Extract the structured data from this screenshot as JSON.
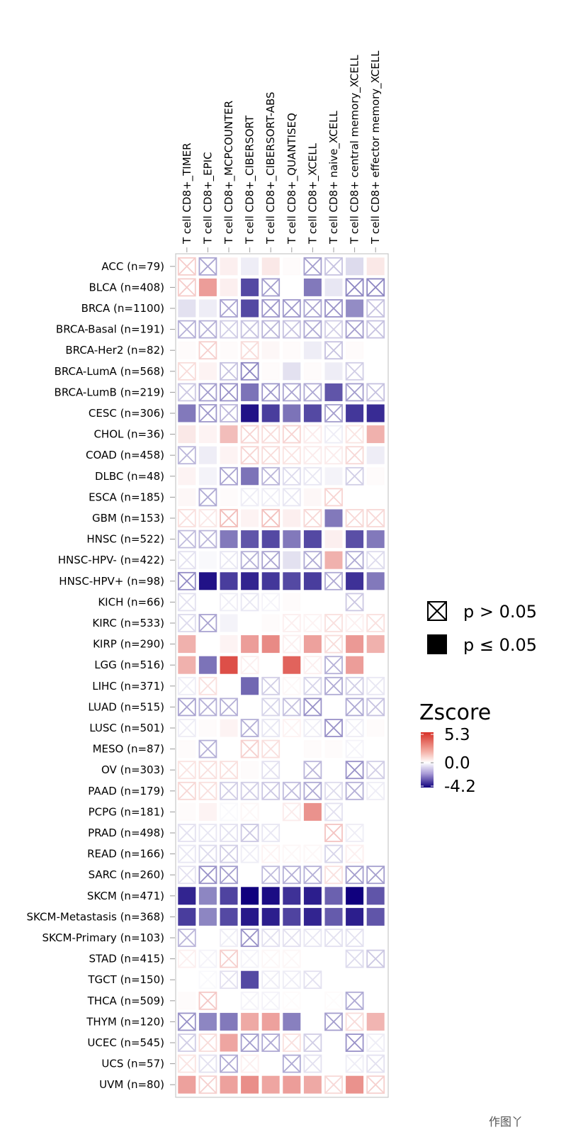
{
  "chart_data": {
    "type": "heatmap",
    "columns": [
      "T cell CD8+_TIMER",
      "T cell CD8+_EPIC",
      "T cell CD8+_MCPCOUNTER",
      "T cell CD8+_CIBERSORT",
      "T cell CD8+_CIBERSORT-ABS",
      "T cell CD8+_QUANTISEQ",
      "T cell CD8+_XCELL",
      "T cell CD8+ naive_XCELL",
      "T cell CD8+ central memory_XCELL",
      "T cell CD8+ effector memory_XCELL"
    ],
    "rows": [
      "ACC (n=79)",
      "BLCA (n=408)",
      "BRCA (n=1100)",
      "BRCA-Basal (n=191)",
      "BRCA-Her2 (n=82)",
      "BRCA-LumA (n=568)",
      "BRCA-LumB (n=219)",
      "CESC (n=306)",
      "CHOL (n=36)",
      "COAD (n=458)",
      "DLBC (n=48)",
      "ESCA (n=185)",
      "GBM (n=153)",
      "HNSC (n=522)",
      "HNSC-HPV- (n=422)",
      "HNSC-HPV+ (n=98)",
      "KICH (n=66)",
      "KIRC (n=533)",
      "KIRP (n=290)",
      "LGG (n=516)",
      "LIHC (n=371)",
      "LUAD (n=515)",
      "LUSC (n=501)",
      "MESO (n=87)",
      "OV (n=303)",
      "PAAD (n=179)",
      "PCPG (n=181)",
      "PRAD (n=498)",
      "READ (n=166)",
      "SARC (n=260)",
      "SKCM (n=471)",
      "SKCM-Metastasis (n=368)",
      "SKCM-Primary (n=103)",
      "STAD (n=415)",
      "TGCT (n=150)",
      "THCA (n=509)",
      "THYM (n=120)",
      "UCEC (n=545)",
      "UCS (n=57)",
      "UVM (n=80)"
    ],
    "zscore": [
      [
        1.3,
        -1.5,
        0.4,
        -0.3,
        0.6,
        0.1,
        -1.6,
        -1.0,
        -0.6,
        0.6
      ],
      [
        1.3,
        2.5,
        0.4,
        -3.0,
        -1.6,
        0.0,
        -2.2,
        -0.4,
        -2.0,
        -2.0
      ],
      [
        -0.5,
        -0.3,
        -1.5,
        -3.0,
        -1.7,
        -1.7,
        -1.5,
        -1.8,
        -1.9,
        -1.0
      ],
      [
        -1.3,
        -1.3,
        -0.8,
        -1.0,
        -1.2,
        -1.0,
        -1.4,
        -0.8,
        -1.6,
        -1.0
      ],
      [
        0.1,
        1.2,
        0.1,
        0.9,
        0.2,
        0.1,
        -0.3,
        -1.0,
        0.1,
        0.0
      ],
      [
        0.9,
        0.3,
        -1.0,
        -2.0,
        0.1,
        -0.5,
        0.1,
        -0.3,
        -0.8,
        0.0
      ],
      [
        -0.9,
        -1.6,
        -1.8,
        -2.3,
        -1.7,
        -1.5,
        -1.4,
        -2.8,
        -1.6,
        -1.0
      ],
      [
        -2.2,
        -1.7,
        -1.2,
        -3.9,
        -3.2,
        -2.3,
        -3.0,
        -1.6,
        -3.3,
        -3.5
      ],
      [
        0.6,
        0.3,
        1.7,
        1.1,
        0.9,
        1.1,
        0.5,
        -0.3,
        0.7,
        2.0
      ],
      [
        -1.2,
        -0.3,
        0.3,
        1.1,
        0.9,
        0.7,
        0.5,
        0.5,
        1.0,
        -0.3
      ],
      [
        0.3,
        -0.2,
        -1.5,
        -2.3,
        -1.2,
        -0.6,
        -0.4,
        -0.2,
        -0.8,
        0.1
      ],
      [
        0.2,
        -1.4,
        0.1,
        -0.3,
        -0.3,
        -0.4,
        0.2,
        1.1,
        0.0,
        0.0
      ],
      [
        0.8,
        0.6,
        1.7,
        0.3,
        1.6,
        0.4,
        1.0,
        -2.2,
        1.0,
        1.0
      ],
      [
        -1.1,
        -1.2,
        -2.2,
        -2.8,
        -3.0,
        -2.2,
        -3.0,
        0.4,
        -2.9,
        -2.2
      ],
      [
        -0.5,
        -0.1,
        -0.4,
        -1.3,
        -1.5,
        -0.5,
        -1.4,
        2.0,
        -1.4,
        -0.6
      ],
      [
        -1.9,
        -3.9,
        -3.2,
        -3.6,
        -3.3,
        -3.0,
        -3.2,
        -1.4,
        -3.4,
        -2.2
      ],
      [
        -0.5,
        0.0,
        -0.3,
        -0.4,
        -0.2,
        0.1,
        0.0,
        0.0,
        -0.9,
        0.0
      ],
      [
        -0.6,
        -1.5,
        -0.2,
        0.0,
        0.1,
        0.4,
        0.3,
        0.8,
        0.4,
        0.8
      ],
      [
        2.0,
        0.0,
        0.3,
        2.5,
        3.0,
        0.4,
        2.4,
        0.9,
        2.6,
        2.0
      ],
      [
        2.0,
        -2.3,
        4.5,
        0.4,
        0.0,
        4.0,
        0.4,
        -1.3,
        2.5,
        0.0
      ],
      [
        -0.3,
        0.8,
        0.0,
        -2.5,
        -0.8,
        0.2,
        -0.7,
        -1.4,
        -0.8,
        -0.4
      ],
      [
        -1.5,
        -1.3,
        -1.3,
        0.0,
        -0.7,
        -1.0,
        -1.8,
        0.0,
        -1.4,
        -1.0
      ],
      [
        -0.3,
        0.1,
        0.3,
        -1.3,
        -0.4,
        0.3,
        -0.3,
        -1.8,
        -0.3,
        0.1
      ],
      [
        0.1,
        -1.3,
        0.0,
        1.2,
        0.8,
        0.0,
        0.1,
        0.1,
        -0.2,
        0.0
      ],
      [
        0.7,
        0.8,
        0.8,
        0.1,
        -0.5,
        0.0,
        -1.2,
        0.0,
        -1.8,
        -0.8
      ],
      [
        1.0,
        0.8,
        -0.8,
        -0.8,
        -0.9,
        -1.1,
        -1.4,
        -0.6,
        -1.3,
        -0.3
      ],
      [
        0.1,
        0.3,
        -0.1,
        0.2,
        0.0,
        0.5,
        2.8,
        -0.5,
        0.0,
        0.0
      ],
      [
        -0.5,
        -0.4,
        -0.5,
        -0.9,
        -0.4,
        0.0,
        0.0,
        1.5,
        -0.3,
        0.0
      ],
      [
        -0.4,
        -0.6,
        -0.8,
        -0.3,
        0.3,
        0.2,
        0.2,
        -0.7,
        0.4,
        0.0
      ],
      [
        -0.5,
        -1.8,
        -1.6,
        0.0,
        -1.1,
        -1.3,
        -1.3,
        0.8,
        -1.6,
        -1.6
      ],
      [
        -3.6,
        -2.0,
        -3.1,
        -4.2,
        -4.0,
        -3.4,
        -3.7,
        -2.6,
        -4.2,
        -2.8
      ],
      [
        -3.2,
        -2.0,
        -3.0,
        -3.8,
        -3.7,
        -3.1,
        -3.6,
        -2.7,
        -3.7,
        -2.8
      ],
      [
        -1.2,
        0.0,
        -0.3,
        -1.8,
        -0.5,
        -0.5,
        -0.4,
        -0.5,
        -0.5,
        0.0
      ],
      [
        0.4,
        -0.2,
        1.2,
        -0.2,
        0.2,
        0.2,
        0.0,
        0.0,
        -0.6,
        -0.9
      ],
      [
        0.0,
        -0.1,
        -0.5,
        -3.0,
        -0.3,
        -0.3,
        -0.5,
        0.0,
        0.0,
        0.0
      ],
      [
        0.1,
        1.4,
        0.0,
        -0.2,
        -0.2,
        0.1,
        0.0,
        0.1,
        -1.4,
        0.0
      ],
      [
        -1.8,
        -2.0,
        -2.2,
        2.2,
        2.4,
        -2.1,
        0.0,
        -1.6,
        0.9,
        1.9
      ],
      [
        -0.8,
        0.9,
        2.3,
        -1.6,
        -1.4,
        0.8,
        -0.8,
        0.0,
        -1.8,
        -0.3
      ],
      [
        0.7,
        -0.5,
        -1.4,
        0.4,
        0.0,
        -1.4,
        -0.5,
        0.0,
        -0.3,
        -0.5
      ],
      [
        2.4,
        1.2,
        2.4,
        2.9,
        2.3,
        2.5,
        2.2,
        1.0,
        2.8,
        1.2
      ]
    ],
    "not_significant": [
      [
        1,
        1,
        0,
        0,
        0,
        0,
        1,
        1,
        0,
        0
      ],
      [
        1,
        0,
        0,
        0,
        1,
        0,
        0,
        0,
        1,
        1
      ],
      [
        0,
        0,
        1,
        0,
        1,
        1,
        1,
        1,
        0,
        1
      ],
      [
        1,
        1,
        1,
        1,
        1,
        1,
        1,
        1,
        1,
        1
      ],
      [
        0,
        1,
        0,
        1,
        0,
        0,
        0,
        1,
        0,
        0
      ],
      [
        1,
        0,
        1,
        1,
        0,
        0,
        0,
        0,
        1,
        0
      ],
      [
        1,
        1,
        1,
        0,
        1,
        1,
        1,
        0,
        1,
        1
      ],
      [
        0,
        1,
        1,
        0,
        0,
        0,
        0,
        1,
        0,
        0
      ],
      [
        0,
        0,
        0,
        1,
        1,
        1,
        1,
        1,
        1,
        0
      ],
      [
        1,
        0,
        0,
        1,
        1,
        1,
        1,
        1,
        1,
        0
      ],
      [
        0,
        0,
        1,
        0,
        1,
        1,
        1,
        0,
        1,
        0
      ],
      [
        0,
        1,
        0,
        1,
        1,
        1,
        0,
        1,
        0,
        0
      ],
      [
        1,
        1,
        1,
        0,
        1,
        0,
        1,
        0,
        1,
        1
      ],
      [
        1,
        1,
        0,
        0,
        0,
        0,
        0,
        0,
        0,
        0
      ],
      [
        1,
        0,
        1,
        1,
        1,
        0,
        1,
        0,
        1,
        1
      ],
      [
        1,
        0,
        0,
        0,
        0,
        0,
        0,
        1,
        0,
        0
      ],
      [
        1,
        0,
        1,
        1,
        1,
        0,
        0,
        0,
        1,
        0
      ],
      [
        1,
        1,
        0,
        0,
        0,
        1,
        1,
        1,
        1,
        1
      ],
      [
        0,
        0,
        0,
        0,
        0,
        1,
        0,
        1,
        0,
        0
      ],
      [
        0,
        0,
        0,
        1,
        0,
        0,
        1,
        1,
        0,
        0
      ],
      [
        1,
        1,
        0,
        0,
        1,
        1,
        1,
        1,
        1,
        1
      ],
      [
        1,
        1,
        1,
        0,
        1,
        1,
        1,
        0,
        1,
        1
      ],
      [
        1,
        0,
        0,
        1,
        1,
        1,
        1,
        1,
        1,
        0
      ],
      [
        0,
        1,
        0,
        1,
        1,
        0,
        0,
        0,
        1,
        0
      ],
      [
        1,
        1,
        1,
        0,
        1,
        0,
        1,
        0,
        1,
        1
      ],
      [
        1,
        1,
        1,
        1,
        1,
        1,
        1,
        1,
        1,
        1
      ],
      [
        0,
        0,
        1,
        1,
        0,
        1,
        0,
        1,
        0,
        0
      ],
      [
        1,
        1,
        1,
        1,
        1,
        0,
        0,
        1,
        1,
        0
      ],
      [
        1,
        1,
        1,
        1,
        1,
        1,
        1,
        1,
        1,
        0
      ],
      [
        1,
        1,
        1,
        0,
        1,
        1,
        1,
        1,
        1,
        1
      ],
      [
        0,
        0,
        0,
        0,
        0,
        0,
        0,
        0,
        0,
        0
      ],
      [
        0,
        0,
        0,
        0,
        0,
        0,
        0,
        0,
        0,
        0
      ],
      [
        1,
        0,
        1,
        1,
        1,
        1,
        1,
        1,
        1,
        0
      ],
      [
        1,
        1,
        1,
        1,
        1,
        1,
        0,
        0,
        1,
        1
      ],
      [
        0,
        1,
        1,
        0,
        1,
        1,
        1,
        0,
        0,
        0
      ],
      [
        0,
        1,
        0,
        1,
        1,
        1,
        0,
        1,
        1,
        0
      ],
      [
        1,
        0,
        0,
        0,
        0,
        0,
        0,
        1,
        1,
        0
      ],
      [
        1,
        1,
        0,
        1,
        1,
        1,
        1,
        0,
        1,
        1
      ],
      [
        1,
        1,
        1,
        1,
        0,
        1,
        1,
        0,
        1,
        1
      ],
      [
        0,
        1,
        0,
        0,
        0,
        0,
        0,
        1,
        0,
        1
      ]
    ],
    "color_scale": {
      "title": "Zscore",
      "min": -4.2,
      "mid": 0.0,
      "max": 5.3,
      "min_label": "-4.2",
      "mid_label": "0.0",
      "max_label": "5.3",
      "low_color": "#10007e",
      "mid_color": "#ffffff",
      "high_color": "#d73027"
    },
    "legend": {
      "placement": "right",
      "not_significant_label": "p > 0.05",
      "significant_label": "p ≤ 0.05"
    }
  },
  "watermark": " 作图丫"
}
